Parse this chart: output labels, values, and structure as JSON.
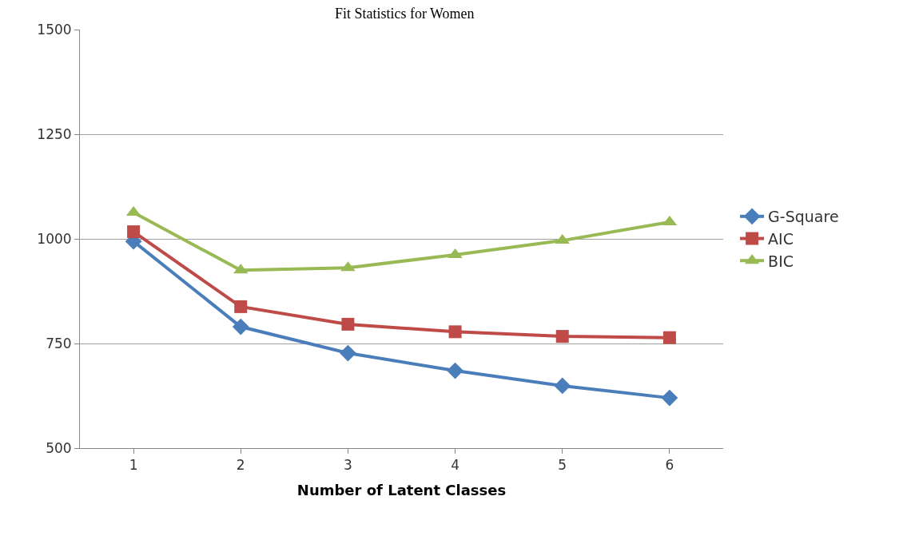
{
  "chart_data": {
    "type": "line",
    "title": "Fit Statistics for Women",
    "xlabel": "Number of Latent Classes",
    "categories": [
      "1",
      "2",
      "3",
      "4",
      "5",
      "6"
    ],
    "series": [
      {
        "name": "G-Square",
        "color": "#4a7ebb",
        "marker": "diamond",
        "values": [
          994,
          790,
          727,
          685,
          649,
          620
        ]
      },
      {
        "name": "AIC",
        "color": "#be4b48",
        "marker": "square",
        "values": [
          1017,
          838,
          796,
          778,
          767,
          764
        ]
      },
      {
        "name": "BIC",
        "color": "#98b954",
        "marker": "triangle",
        "values": [
          1063,
          925,
          931,
          962,
          996,
          1040
        ]
      }
    ],
    "ylim": [
      500,
      1500
    ],
    "yticks": [
      500,
      750,
      1000,
      1250,
      1500
    ],
    "grid": "y",
    "legend": "right"
  }
}
